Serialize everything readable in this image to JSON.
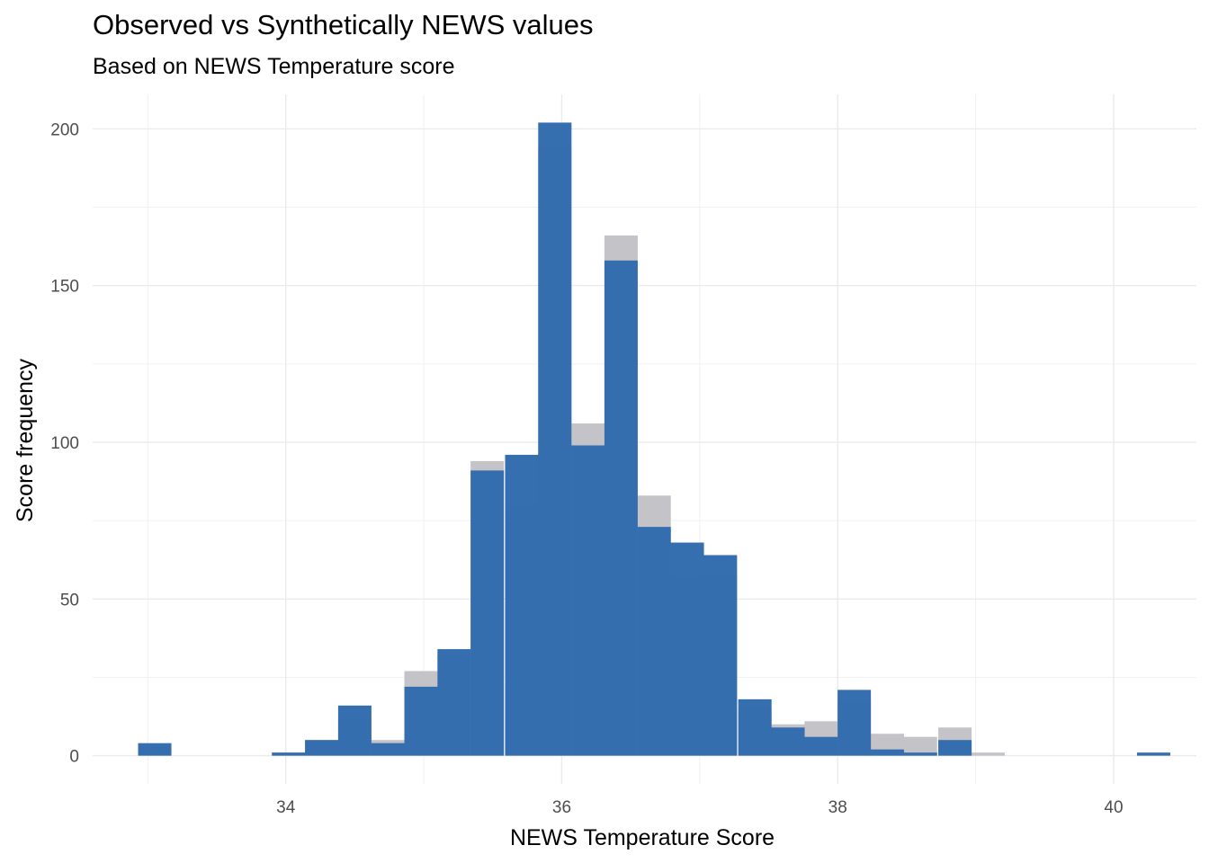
{
  "chart_data": {
    "type": "bar",
    "title": "Observed vs Synthetically NEWS values",
    "subtitle": "Based on NEWS Temperature score",
    "xlabel": "NEWS Temperature Score",
    "ylabel": "Score frequency",
    "xlim": [
      32.6,
      40.6
    ],
    "ylim": [
      -9,
      211
    ],
    "x_ticks": [
      34,
      36,
      38,
      40
    ],
    "y_ticks": [
      0,
      50,
      100,
      150,
      200
    ],
    "grid": true,
    "bin_width": 0.2414,
    "bin_centers": [
      33.05,
      33.29,
      33.53,
      33.78,
      34.02,
      34.26,
      34.5,
      34.74,
      34.98,
      35.22,
      35.46,
      35.71,
      35.95,
      36.19,
      36.43,
      36.67,
      36.91,
      37.15,
      37.4,
      37.64,
      37.88,
      38.12,
      38.36,
      38.6,
      38.85,
      39.09,
      39.33,
      39.57,
      39.81,
      40.05,
      40.29
    ],
    "series": [
      {
        "color": "#c4c3c8",
        "values": [
          3,
          0,
          0,
          0,
          1,
          5,
          12,
          5,
          27,
          32,
          94,
          80,
          194,
          106,
          166,
          83,
          57,
          58,
          15,
          10,
          11,
          17,
          7,
          6,
          9,
          1,
          0,
          0,
          0,
          0,
          0
        ]
      },
      {
        "color": "#326cae",
        "values": [
          4,
          0,
          0,
          0,
          1,
          5,
          16,
          4,
          22,
          34,
          91,
          96,
          202,
          99,
          158,
          73,
          68,
          64,
          18,
          9,
          6,
          21,
          2,
          1,
          5,
          0,
          0,
          0,
          0,
          0,
          1
        ]
      }
    ]
  }
}
